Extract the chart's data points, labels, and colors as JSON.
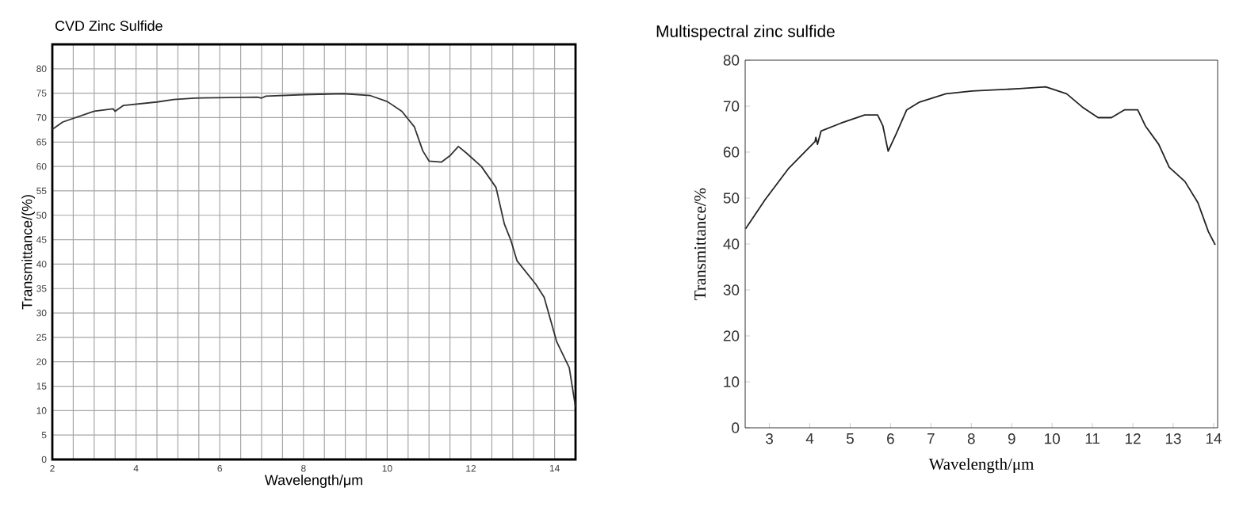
{
  "chart_data": [
    {
      "type": "line",
      "title": "CVD Zinc Sulfide",
      "xlabel": "Wavelength/μm",
      "ylabel": "Transmittance/(%)",
      "xlim": [
        2,
        14.5
      ],
      "ylim": [
        0,
        85
      ],
      "xticks": [
        2,
        {
          "value": 2.5,
          "label": null
        },
        {
          "value": 3,
          "label": null
        },
        {
          "value": 3.5,
          "label": null
        },
        4,
        {
          "value": 4.5,
          "label": null
        },
        {
          "value": 5,
          "label": null
        },
        {
          "value": 5.5,
          "label": null
        },
        6,
        {
          "value": 6.5,
          "label": null
        },
        {
          "value": 7,
          "label": null
        },
        {
          "value": 7.5,
          "label": null
        },
        8,
        {
          "value": 8.5,
          "label": null
        },
        {
          "value": 9,
          "label": null
        },
        {
          "value": 9.5,
          "label": null
        },
        10,
        {
          "value": 10.5,
          "label": null
        },
        {
          "value": 11,
          "label": null
        },
        {
          "value": 11.5,
          "label": null
        },
        12,
        {
          "value": 12.5,
          "label": null
        },
        {
          "value": 13,
          "label": null
        },
        {
          "value": 13.5,
          "label": null
        },
        14
      ],
      "yticks": [
        0,
        5,
        10,
        15,
        20,
        25,
        30,
        35,
        40,
        45,
        50,
        55,
        60,
        65,
        70,
        75,
        80
      ],
      "grid": true,
      "series": [
        {
          "color": "#333333",
          "x": [
            2,
            2.25,
            3.0,
            3.45,
            3.5,
            3.7,
            4.5,
            4.9,
            5.4,
            6.9,
            7.0,
            7.1,
            8.0,
            8.95,
            9.6,
            10.0,
            10.35,
            10.65,
            10.85,
            11.0,
            11.3,
            11.5,
            11.7,
            11.9,
            12.25,
            12.6,
            12.8,
            12.95,
            13.1,
            13.55,
            13.75,
            14.05,
            14.35,
            14.5
          ],
          "values": [
            67.6,
            69.1,
            71.3,
            71.8,
            71.3,
            72.5,
            73.2,
            73.7,
            74.0,
            74.2,
            74.0,
            74.4,
            74.7,
            74.9,
            74.5,
            73.3,
            71.3,
            68.1,
            63.2,
            61.1,
            60.9,
            62.2,
            64.1,
            62.7,
            60.0,
            55.7,
            48.2,
            45.0,
            40.7,
            35.9,
            33.2,
            24.1,
            18.8,
            10.7
          ]
        }
      ]
    },
    {
      "type": "line",
      "title": "Multispectral zinc sulfide",
      "xlabel": "Wavelength/μm",
      "ylabel": "Transmittance/%",
      "xlim": [
        2.4,
        14.1
      ],
      "ylim": [
        0,
        80
      ],
      "xticks": [
        3,
        4,
        5,
        6,
        7,
        8,
        9,
        10,
        11,
        12,
        13,
        14
      ],
      "yticks": [
        0,
        10,
        20,
        30,
        40,
        50,
        60,
        70,
        80
      ],
      "series": [
        {
          "color": "#222222",
          "x": [
            2.41,
            2.89,
            3.48,
            3.87,
            4.13,
            4.15,
            4.19,
            4.28,
            4.77,
            5.36,
            5.68,
            5.81,
            5.94,
            6.14,
            6.4,
            6.72,
            7.37,
            8.02,
            9.19,
            9.84,
            10.36,
            10.75,
            11.14,
            11.47,
            11.79,
            12.12,
            12.31,
            12.64,
            12.9,
            13.29,
            13.61,
            13.87,
            14.04
          ],
          "values": [
            43.3,
            49.6,
            56.5,
            60.0,
            62.3,
            63.2,
            61.7,
            64.6,
            66.3,
            68.1,
            68.1,
            65.7,
            60.2,
            64.0,
            69.2,
            70.9,
            72.7,
            73.3,
            73.8,
            74.2,
            72.7,
            69.8,
            67.5,
            67.5,
            69.2,
            69.2,
            65.7,
            61.7,
            56.7,
            53.6,
            49.0,
            42.7,
            39.8
          ]
        }
      ]
    }
  ]
}
